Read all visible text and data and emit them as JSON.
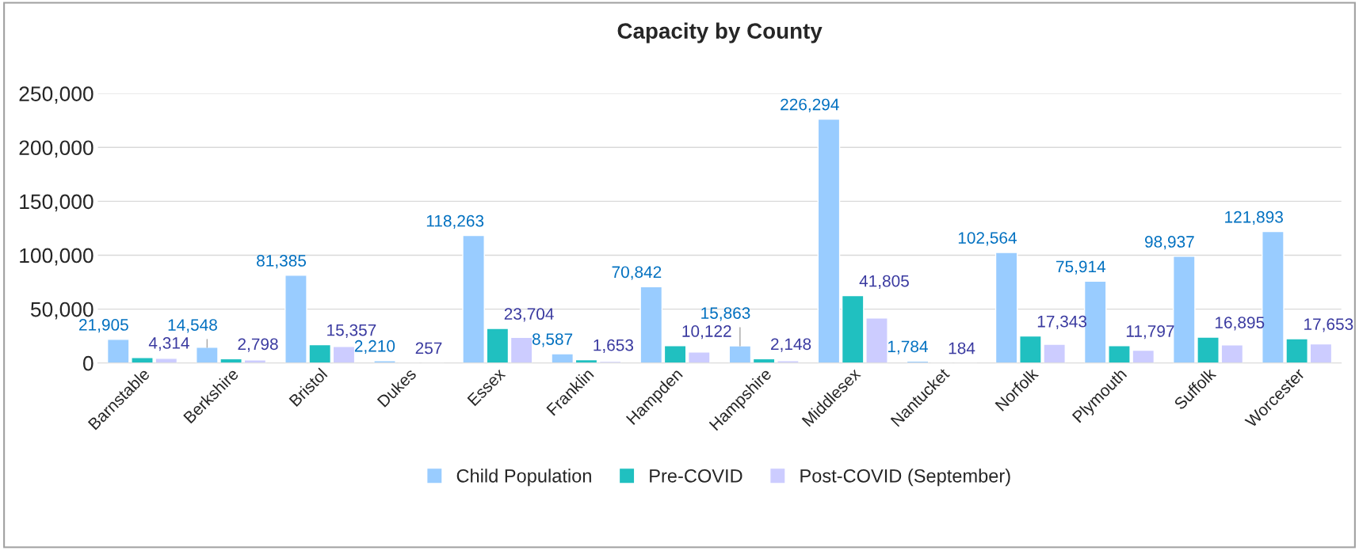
{
  "chart_data": {
    "type": "bar",
    "title": "Capacity by County",
    "categories": [
      "Barnstable",
      "Berkshire",
      "Bristol",
      "Dukes",
      "Essex",
      "Franklin",
      "Hampden",
      "Hampshire",
      "Middlesex",
      "Nantucket",
      "Norfolk",
      "Plymouth",
      "Suffolk",
      "Worcester"
    ],
    "series": [
      {
        "name": "Child Population",
        "color": "#99ccff",
        "values": [
          21905,
          14548,
          81385,
          2210,
          118263,
          8587,
          70842,
          15863,
          226294,
          1784,
          102564,
          75914,
          98937,
          121893
        ],
        "value_labels": [
          "21,905",
          "14,548",
          "81,385",
          "2,210",
          "118,263",
          "8,587",
          "70,842",
          "15,863",
          "226,294",
          "1,784",
          "102,564",
          "75,914",
          "98,937",
          "121,893"
        ]
      },
      {
        "name": "Pre-COVID",
        "color": "#20c0c0",
        "values": [
          5000,
          4000,
          17000,
          null,
          32000,
          3000,
          16000,
          4000,
          62500,
          null,
          25000,
          16000,
          24000,
          22500
        ]
      },
      {
        "name": "Post-COVID (September)",
        "color": "#ccccff",
        "values": [
          4314,
          2798,
          15357,
          257,
          23704,
          1653,
          10122,
          2148,
          41805,
          184,
          17343,
          11797,
          16895,
          17653
        ],
        "value_labels": [
          "4,314",
          "2,798",
          "15,357",
          "257",
          "23,704",
          "1,653",
          "10,122",
          "2,148",
          "41,805",
          "184",
          "17,343",
          "11,797",
          "16,895",
          "17,653"
        ]
      }
    ],
    "ylim": [
      0,
      250000
    ],
    "yticks": [
      {
        "value": 0,
        "label": "0"
      },
      {
        "value": 50000,
        "label": "50,000"
      },
      {
        "value": 100000,
        "label": "100,000"
      },
      {
        "value": 150000,
        "label": "150,000"
      },
      {
        "value": 200000,
        "label": "200,000"
      },
      {
        "value": 250000,
        "label": "250,000"
      }
    ],
    "grid": "y",
    "legend": "bottom"
  }
}
